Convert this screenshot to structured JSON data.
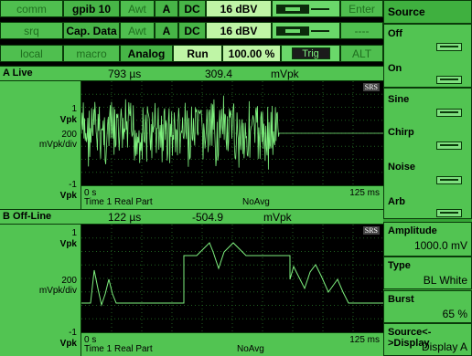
{
  "top_buttons": {
    "row1": [
      "comm",
      "gpib 10",
      "Awt",
      "A",
      "DC",
      "16 dBV",
      "",
      "Enter"
    ],
    "row2": [
      "srq",
      "Cap. Data",
      "Awt",
      "A",
      "DC",
      "16 dBV",
      "",
      "----"
    ],
    "row3": [
      "local",
      "macro",
      "Analog",
      "Run",
      "100.00 %",
      "Trig",
      "ALT"
    ]
  },
  "softkeys": {
    "title": "Source",
    "off": "Off",
    "on": "On",
    "sine": "Sine",
    "chirp": "Chirp",
    "noise": "Noise",
    "arb": "Arb",
    "amplitude_label": "Amplitude",
    "amplitude_value": "1000.0 mV",
    "type_label": "Type",
    "type_value": "BL White",
    "burst_label": "Burst",
    "burst_value": "65 %",
    "srcdisp_label": "Source<->Display",
    "srcdisp_value": "Display A"
  },
  "pane_a": {
    "name": "A Live",
    "marker_x": "793 µs",
    "marker_y": "309.4",
    "marker_unit": "mVpk",
    "ytop": "1",
    "ytop_unit": "Vpk",
    "ydiv": "200",
    "ydiv_unit": "mVpk/div",
    "ybot": "-1",
    "ybot_unit": "Vpk",
    "x_start": "0 s",
    "x_end": "125 ms",
    "measurement": "Time 1 Real Part",
    "avg": "NoAvg",
    "logo": "SRS"
  },
  "pane_b": {
    "name": "B Off-Line",
    "marker_x": "122 µs",
    "marker_y": "-504.9",
    "marker_unit": "mVpk",
    "ytop": "1",
    "ytop_unit": "Vpk",
    "ydiv": "200",
    "ydiv_unit": "mVpk/div",
    "ybot": "-1",
    "ybot_unit": "Vpk",
    "x_start": "0 s",
    "x_end": "125 ms",
    "measurement": "Time 1 Real Part",
    "avg": "NoAvg",
    "logo": "SRS"
  },
  "colors": {
    "trace": "#7ef07e",
    "panel": "#52c452",
    "grid": "#1f5f1f"
  }
}
